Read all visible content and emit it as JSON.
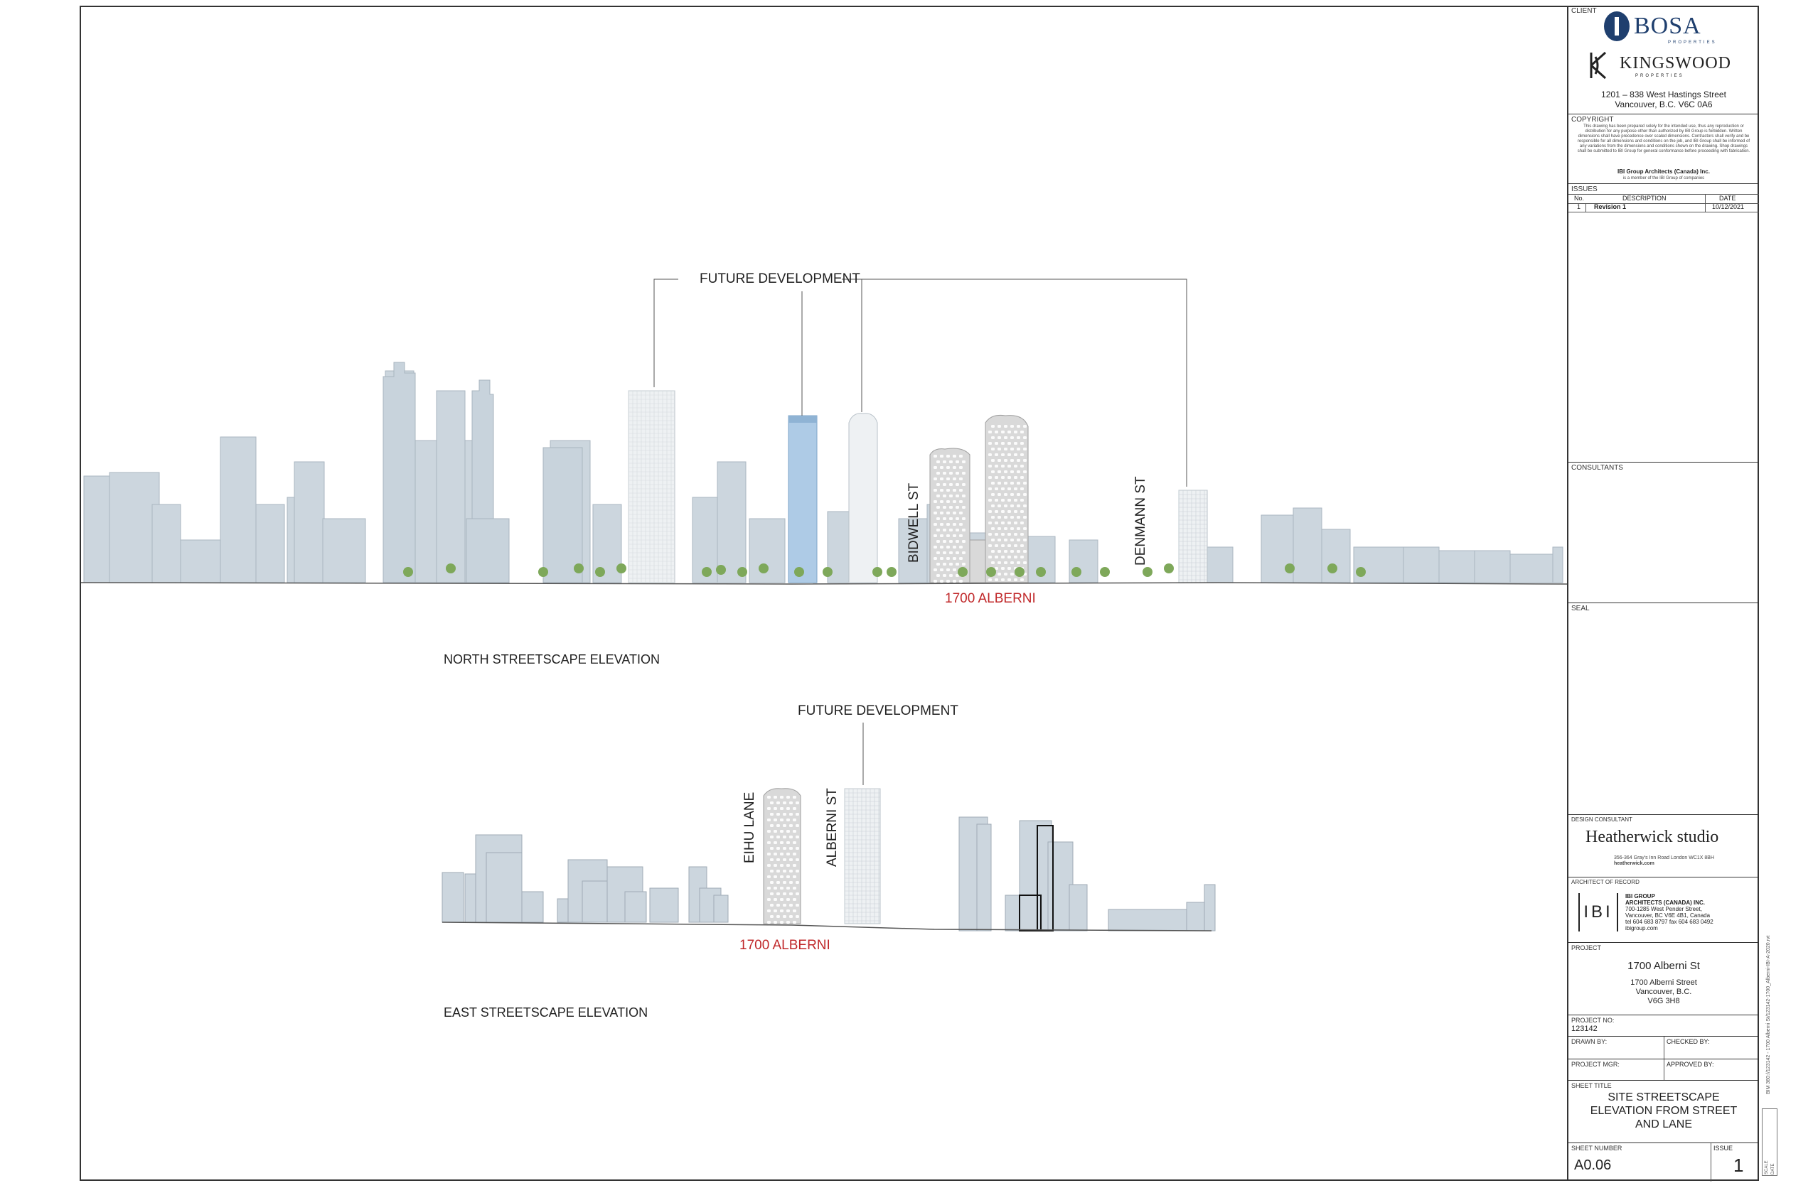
{
  "drawing": {
    "north_elevation": {
      "title": "NORTH STREETSCAPE ELEVATION",
      "callout": "FUTURE DEVELOPMENT",
      "streets": [
        "BIDWELL ST",
        "DENMANN ST"
      ],
      "site_label": "1700 ALBERNI"
    },
    "east_elevation": {
      "title": "EAST STREETSCAPE ELEVATION",
      "callout": "FUTURE DEVELOPMENT",
      "streets": [
        "EIHU LANE",
        "ALBERNI ST"
      ],
      "site_label": "1700 ALBERNI"
    },
    "accent_red": "#c0282a",
    "building_fill": "#c8d2db"
  },
  "titleblock": {
    "client": {
      "heading": "CLIENT",
      "brand1": "BOSA",
      "brand1_sub": "PROPERTIES",
      "brand2": "KINGSWOOD",
      "brand2_sub": "PROPERTIES",
      "address_line1": "1201 – 838 West Hastings Street",
      "address_line2": "Vancouver, B.C. V6C 0A6"
    },
    "copyright": {
      "heading": "COPYRIGHT",
      "body": "This drawing has been prepared solely for the intended use, thus any reproduction or distribution for any purpose other than authorized by IBI Group is forbidden. Written dimensions shall have precedence over scaled dimensions. Contractors shall verify and be responsible for all dimensions and conditions on the job, and IBI Group shall be informed of any variations from the dimensions and conditions shown on the drawing. Shop drawings shall be submitted to IBI Group for general conformance before proceeding with fabrication.",
      "firm": "IBI Group Architects (Canada) Inc.",
      "firm_sub": "is a member of the IBI Group of companies"
    },
    "issues": {
      "heading": "ISSUES",
      "col_no": "No.",
      "col_desc": "DESCRIPTION",
      "col_date": "DATE",
      "rows": [
        {
          "no": "1",
          "desc": "Revision 1",
          "date": "10/12/2021"
        }
      ]
    },
    "consultants": {
      "heading": "CONSULTANTS"
    },
    "seal": {
      "heading": "SEAL"
    },
    "design_consultant": {
      "heading": "DESIGN CONSULTANT",
      "name": "Heatherwick studio",
      "address": "356-364 Gray's Inn Road London WC1X 8BH",
      "web": "heatherwick.com"
    },
    "architect": {
      "heading": "ARCHITECT OF RECORD",
      "logo": "IBI",
      "line1": "IBI GROUP",
      "line2": "ARCHITECTS (CANADA) INC.",
      "line3": "700-1285 West Pender Street,",
      "line4": "Vancouver, BC V6E 4B1, Canada",
      "line5": "tel 604 683 8797 fax 604 683 0492",
      "line6": "ibigroup.com"
    },
    "project": {
      "heading": "PROJECT",
      "name": "1700 Alberni St",
      "addr1": "1700 Alberni Street",
      "addr2": "Vancouver, B.C.",
      "addr3": "V6G 3H8"
    },
    "project_no": {
      "heading": "PROJECT NO:",
      "value": "123142"
    },
    "drawn_by": {
      "heading": "DRAWN BY:"
    },
    "checked_by": {
      "heading": "CHECKED BY:"
    },
    "project_mgr": {
      "heading": "PROJECT MGR:"
    },
    "approved_by": {
      "heading": "APPROVED BY:"
    },
    "sheet_title": {
      "heading": "SHEET TITLE",
      "line1": "SITE STREETSCAPE",
      "line2": "ELEVATION FROM STREET",
      "line3": "AND LANE"
    },
    "sheet_number": {
      "heading": "SHEET NUMBER",
      "value": "A0.06"
    },
    "issue": {
      "heading": "ISSUE",
      "value": "1"
    },
    "side_text": "BIM 360://123142 - 1700 Alberni St/123142-1700_Alberni-IBI-A-2020.rvt",
    "scale_label": "SCALE",
    "date_label": "DATE"
  }
}
